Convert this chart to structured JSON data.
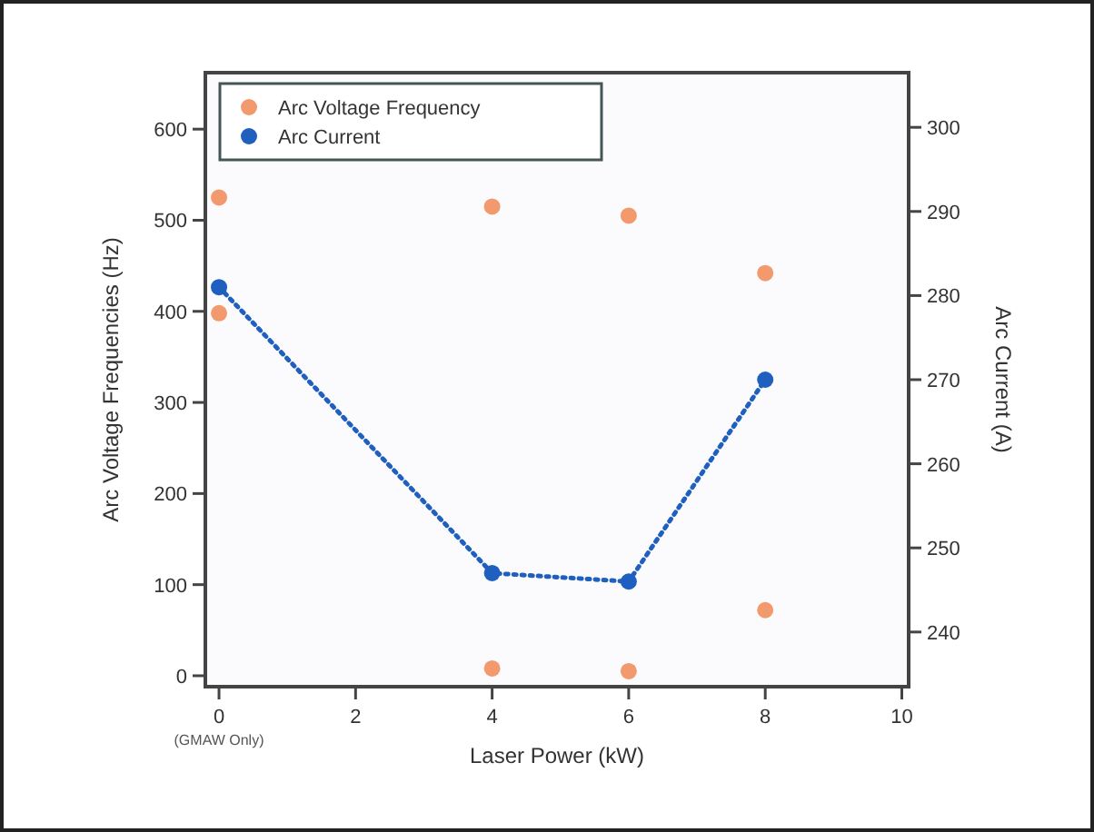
{
  "chart_data": {
    "type": "scatter",
    "xlabel": "Laser Power (kW)",
    "ylabel": "Arc Voltage Frequencies (Hz)",
    "y2label": "Arc Current (A)",
    "xlim": [
      -0.2,
      10.1
    ],
    "xticks": [
      0,
      2,
      4,
      6,
      8,
      10
    ],
    "ylim": [
      -12,
      662
    ],
    "yticks": [
      0,
      100,
      200,
      300,
      400,
      500,
      600
    ],
    "y2lim": [
      233.5,
      306.5
    ],
    "y2ticks": [
      240,
      250,
      260,
      270,
      280,
      290,
      300
    ],
    "annotations": [
      "(GMAW Only)"
    ],
    "legend": "top left",
    "grid": false,
    "marker": "circle",
    "series": [
      {
        "name": "Arc Voltage Frequency",
        "type": "scatter",
        "color": "#f29a6e",
        "x": [
          0,
          0,
          4,
          4,
          6,
          6,
          8,
          8
        ],
        "values": [
          525,
          398,
          515,
          8,
          505,
          5,
          442,
          72
        ]
      },
      {
        "name": "Arc Current",
        "type": "line",
        "axis": "y2",
        "color": "#1f5fbf",
        "line_style": "dotted",
        "x": [
          0,
          4,
          6,
          8
        ],
        "values": [
          281,
          247,
          246,
          270
        ]
      }
    ]
  }
}
